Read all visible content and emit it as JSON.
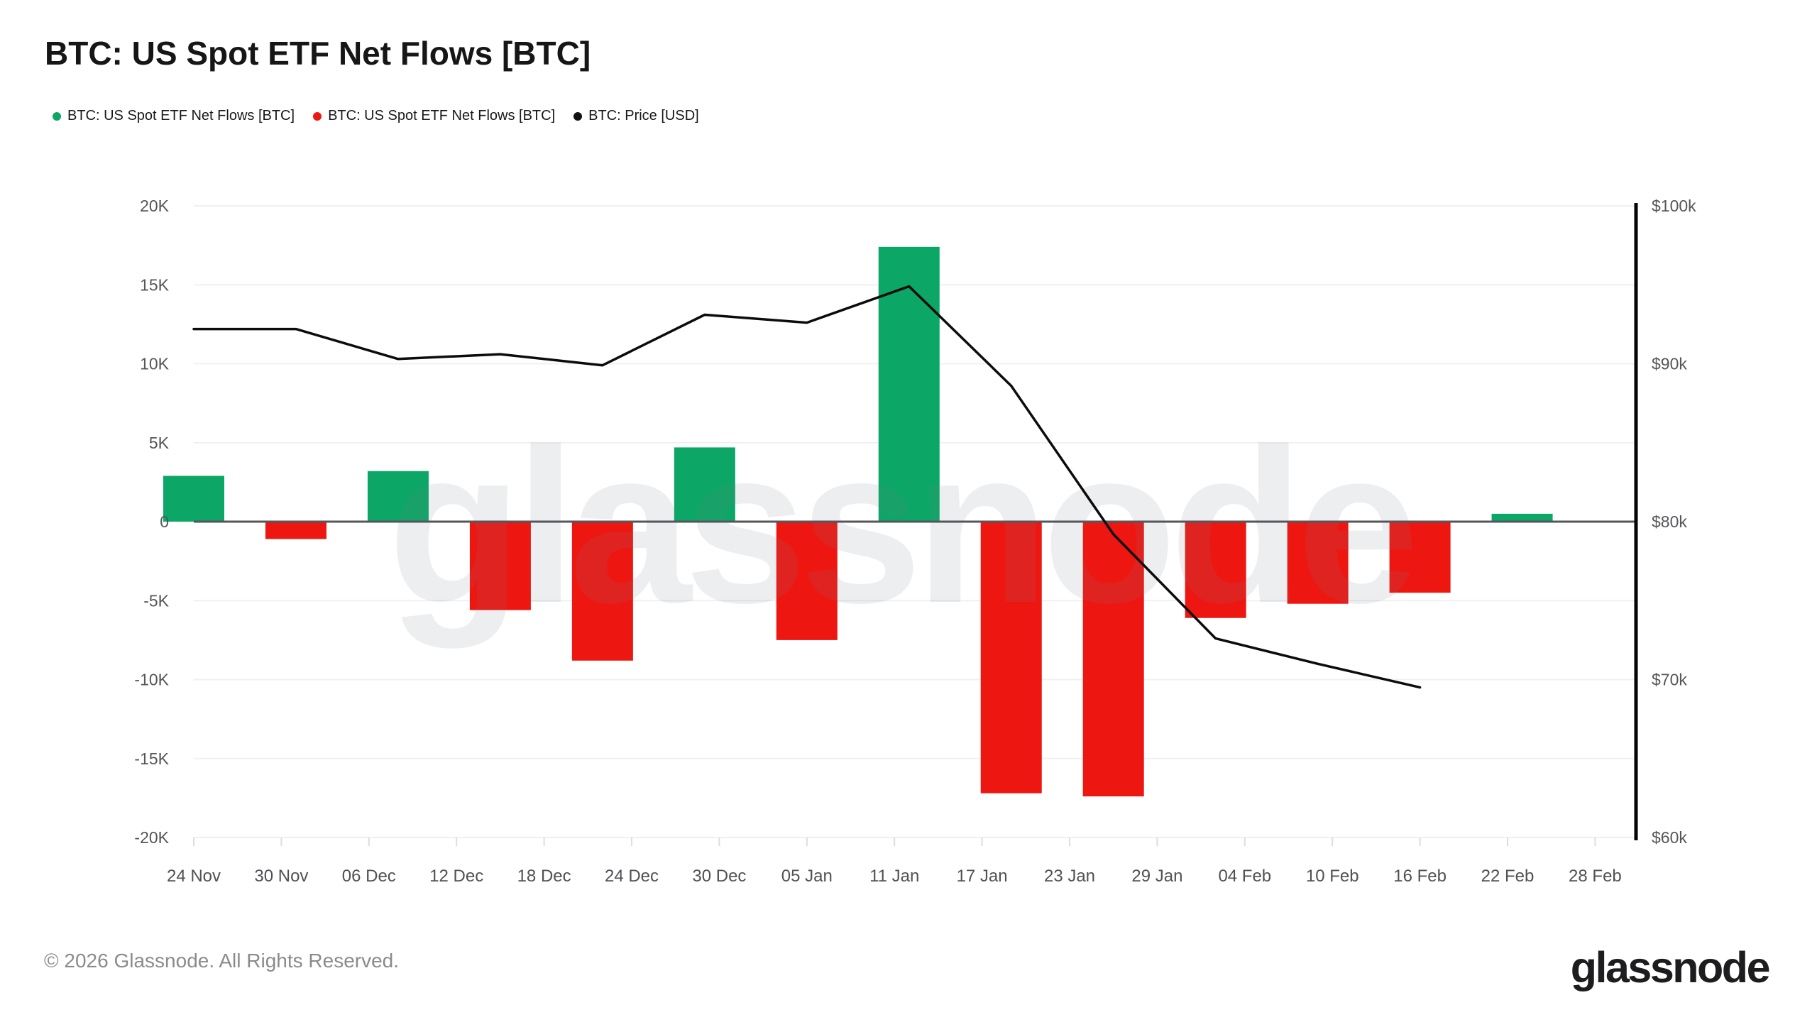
{
  "header": {
    "title": "BTC: US Spot ETF Net Flows [BTC]"
  },
  "legend": {
    "items": [
      {
        "label": "BTC: US Spot ETF Net Flows [BTC]",
        "color": "green"
      },
      {
        "label": "BTC: US Spot ETF Net Flows [BTC]",
        "color": "red"
      },
      {
        "label": "BTC: Price [USD]",
        "color": "black"
      }
    ]
  },
  "palette": {
    "green": "#0ca766",
    "red": "#ee1611",
    "black": "#111111",
    "line": "#0c0c0c",
    "grid": "#f0f0f4",
    "zero_line": "#55565b",
    "right_axis": "#050505",
    "axis_text": "#55565a",
    "tick_nub": "#dcdde2",
    "watermark": "#767c8a"
  },
  "watermark": {
    "text": "glassnode"
  },
  "chart_data": {
    "type": "combo_bar_line",
    "title": "BTC: US Spot ETF Net Flows [BTC]",
    "x_tick_labels": [
      "24 Nov",
      "30 Nov",
      "06 Dec",
      "12 Dec",
      "18 Dec",
      "24 Dec",
      "30 Dec",
      "05 Jan",
      "11 Jan",
      "17 Jan",
      "23 Jan",
      "29 Jan",
      "04 Feb",
      "10 Feb",
      "16 Feb",
      "22 Feb",
      "28 Feb"
    ],
    "x_tick_interval_days": 6,
    "bar_interval_days": 7,
    "axis_left": {
      "ticks": [
        "20K",
        "15K",
        "10K",
        "5K",
        "0",
        "-5K",
        "-10K",
        "-15K",
        "-20K"
      ],
      "min": -20000,
      "max": 20000
    },
    "axis_right": {
      "ticks": [
        "$100k",
        "$90k",
        "$80k",
        "$70k",
        "$60k"
      ],
      "min": 60000,
      "max": 100000
    },
    "bars": {
      "name": "BTC: US Spot ETF Net Flows [BTC]",
      "dates": [
        "24 Nov",
        "01 Dec",
        "08 Dec",
        "15 Dec",
        "22 Dec",
        "29 Dec",
        "05 Jan",
        "12 Jan",
        "19 Jan",
        "26 Jan",
        "02 Feb",
        "09 Feb",
        "16 Feb",
        "23 Feb"
      ],
      "values": [
        2900,
        -1100,
        3200,
        -5600,
        -8800,
        4700,
        -7500,
        17400,
        -17200,
        -17400,
        -6100,
        -5200,
        -4500,
        500
      ],
      "positive_color": "green",
      "negative_color": "red"
    },
    "price_line": {
      "name": "BTC: Price [USD]",
      "dates": [
        "24 Nov",
        "01 Dec",
        "08 Dec",
        "15 Dec",
        "22 Dec",
        "29 Dec",
        "05 Jan",
        "12 Jan",
        "19 Jan",
        "26 Jan",
        "02 Feb",
        "09 Feb",
        "16 Feb"
      ],
      "values": [
        92200,
        92200,
        90300,
        90600,
        89900,
        93100,
        92600,
        94900,
        88600,
        79200,
        72600,
        71000,
        69500
      ]
    },
    "grid": true,
    "legend_position": "top-left"
  },
  "footer": {
    "copyright": "© 2026 Glassnode. All Rights Reserved.",
    "logo": "glassnode"
  }
}
